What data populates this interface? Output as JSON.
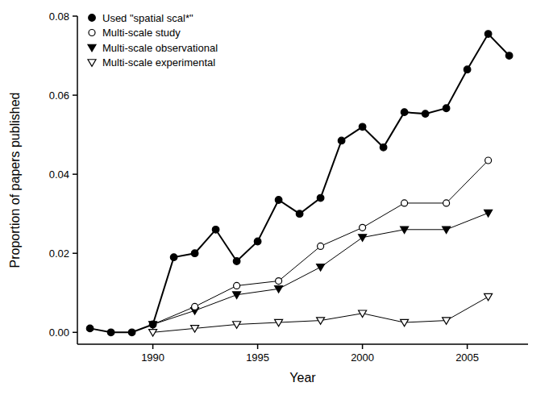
{
  "chart_data": {
    "type": "line",
    "x_label": "Year",
    "y_label": "Proportion of papers published",
    "xlim": [
      1986.4,
      2007.9
    ],
    "ylim": [
      -0.003,
      0.08
    ],
    "xticks": [
      1990,
      1995,
      2000,
      2005
    ],
    "yticks": [
      {
        "value": 0,
        "label": "0.00"
      },
      {
        "value": 0.02,
        "label": "0.02"
      },
      {
        "value": 0.04,
        "label": "0.04"
      },
      {
        "value": 0.06,
        "label": "0.06"
      },
      {
        "value": 0.08,
        "label": "0.08"
      }
    ],
    "grid": false,
    "legend": "top-left",
    "series": [
      {
        "name": "Used \"spatial scal*\"",
        "color": "#000000",
        "marker": "circle",
        "x": [
          1987,
          1988,
          1989,
          1990,
          1991,
          1992,
          1993,
          1994,
          1995,
          1996,
          1997,
          1998,
          1999,
          2000,
          2001,
          2002,
          2003,
          2004,
          2005,
          2006,
          2007
        ],
        "values": [
          0.001,
          0.0,
          0.0,
          0.002,
          0.019,
          0.02,
          0.026,
          0.018,
          0.023,
          0.0335,
          0.03,
          0.034,
          0.0485,
          0.052,
          0.0468,
          0.0557,
          0.0553,
          0.0567,
          0.0665,
          0.0755,
          0.07
        ]
      },
      {
        "name": "Multi-scale study",
        "color": "#000000",
        "marker": "circle-open",
        "x": [
          1990,
          1992,
          1994,
          1996,
          1998,
          2000,
          2002,
          2004,
          2006
        ],
        "values": [
          0.002,
          0.0065,
          0.0118,
          0.013,
          0.0218,
          0.0265,
          0.0327,
          0.0327,
          0.0435
        ]
      },
      {
        "name": "Multi-scale observational",
        "color": "#000000",
        "marker": "triangle-down",
        "x": [
          1990,
          1992,
          1994,
          1996,
          1998,
          2000,
          2002,
          2004,
          2006
        ],
        "values": [
          0.002,
          0.0055,
          0.0095,
          0.011,
          0.0165,
          0.024,
          0.026,
          0.026,
          0.0302
        ]
      },
      {
        "name": "Multi-scale experimental",
        "color": "#000000",
        "marker": "triangle-down-open",
        "x": [
          1990,
          1992,
          1994,
          1996,
          1998,
          2000,
          2002,
          2004,
          2006
        ],
        "values": [
          0.0,
          0.001,
          0.002,
          0.0025,
          0.003,
          0.0048,
          0.0025,
          0.003,
          0.009
        ]
      }
    ]
  }
}
